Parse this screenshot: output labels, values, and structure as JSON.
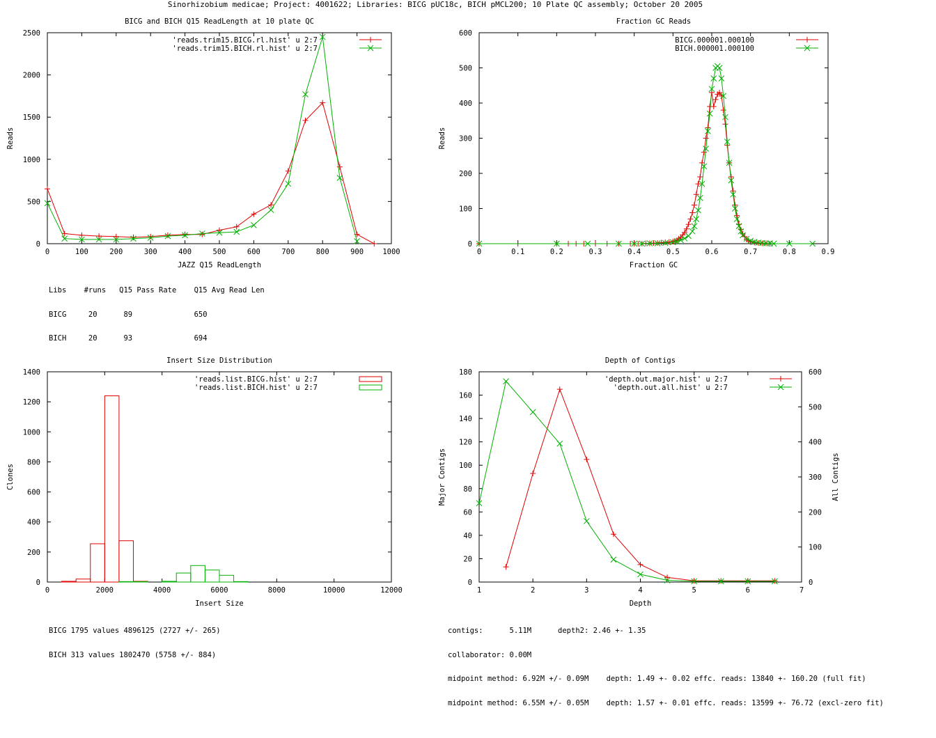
{
  "suptitle": "Sinorhizobium medicae; Project: 4001622; Libraries: BICG pUC18c, BICH pMCL200; 10 Plate QC assembly; October 20 2005",
  "colors": {
    "red": "#e00000",
    "green": "#00b000"
  },
  "chart_data": [
    {
      "id": "readlength",
      "type": "line",
      "title": "BICG and BICH Q15 ReadLength at 10 plate QC",
      "xlabel": "JAZZ Q15 ReadLength",
      "ylabel": "Reads",
      "xlim": [
        0,
        1000
      ],
      "ylim": [
        0,
        2500
      ],
      "xticks": [
        0,
        100,
        200,
        300,
        400,
        500,
        600,
        700,
        800,
        900,
        1000
      ],
      "yticks": [
        0,
        500,
        1000,
        1500,
        2000,
        2500
      ],
      "legend_position": "top-right",
      "series": [
        {
          "name": "'reads.trim15.BICG.rl.hist' u 2:7",
          "color": "#e00000",
          "marker": "plus",
          "x": [
            0,
            50,
            100,
            150,
            200,
            250,
            300,
            350,
            400,
            450,
            500,
            550,
            600,
            650,
            700,
            750,
            800,
            850,
            900,
            950
          ],
          "y": [
            650,
            120,
            100,
            90,
            85,
            75,
            85,
            100,
            110,
            110,
            160,
            200,
            350,
            460,
            860,
            1460,
            1670,
            910,
            110,
            0
          ]
        },
        {
          "name": "'reads.trim15.BICH.rl.hist' u 2:7",
          "color": "#00b000",
          "marker": "x",
          "x": [
            0,
            50,
            100,
            150,
            200,
            250,
            300,
            350,
            400,
            450,
            500,
            550,
            600,
            650,
            700,
            750,
            800,
            850,
            900
          ],
          "y": [
            480,
            60,
            50,
            50,
            50,
            60,
            70,
            90,
            100,
            120,
            130,
            140,
            220,
            400,
            710,
            1770,
            2450,
            780,
            30
          ]
        }
      ],
      "notes": [
        "Libs    #runs   Q15 Pass Rate    Q15 Avg Read Len",
        "BICG     20      89              650",
        "BICH     20      93              694"
      ]
    },
    {
      "id": "gc",
      "type": "line",
      "title": "Fraction GC Reads",
      "xlabel": "Fraction GC",
      "ylabel": "Reads",
      "xlim": [
        0,
        0.9
      ],
      "ylim": [
        0,
        600
      ],
      "xticks": [
        0,
        0.1,
        0.2,
        0.3,
        0.4,
        0.5,
        0.6,
        0.7,
        0.8,
        0.9
      ],
      "yticks": [
        0,
        100,
        200,
        300,
        400,
        500,
        600
      ],
      "legend_position": "top-right",
      "series": [
        {
          "name": "BICG.000001.000100",
          "color": "#e00000",
          "marker": "plus",
          "x": [
            0,
            0.1,
            0.2,
            0.23,
            0.25,
            0.27,
            0.3,
            0.33,
            0.36,
            0.39,
            0.4,
            0.41,
            0.42,
            0.43,
            0.44,
            0.45,
            0.46,
            0.47,
            0.48,
            0.49,
            0.5,
            0.505,
            0.51,
            0.515,
            0.52,
            0.525,
            0.53,
            0.535,
            0.54,
            0.545,
            0.55,
            0.555,
            0.56,
            0.565,
            0.57,
            0.575,
            0.58,
            0.585,
            0.59,
            0.595,
            0.6,
            0.605,
            0.61,
            0.615,
            0.62,
            0.625,
            0.63,
            0.635,
            0.64,
            0.645,
            0.65,
            0.655,
            0.66,
            0.665,
            0.67,
            0.675,
            0.68,
            0.685,
            0.69,
            0.695,
            0.7,
            0.71,
            0.72,
            0.73,
            0.74,
            0.75
          ],
          "y": [
            0,
            0,
            0,
            0,
            0,
            0,
            0,
            0,
            0,
            0,
            0,
            0,
            0,
            1,
            1,
            2,
            2,
            3,
            4,
            5,
            6,
            8,
            10,
            14,
            18,
            25,
            32,
            42,
            55,
            70,
            88,
            110,
            140,
            170,
            190,
            230,
            260,
            300,
            330,
            390,
            430,
            390,
            410,
            425,
            430,
            420,
            380,
            340,
            280,
            230,
            190,
            150,
            110,
            80,
            55,
            40,
            28,
            20,
            12,
            8,
            5,
            3,
            2,
            1,
            1,
            0
          ]
        },
        {
          "name": "BICH.000001.000100",
          "color": "#00b000",
          "marker": "x",
          "x": [
            0,
            0.2,
            0.28,
            0.36,
            0.4,
            0.42,
            0.44,
            0.46,
            0.48,
            0.5,
            0.51,
            0.52,
            0.53,
            0.54,
            0.55,
            0.555,
            0.56,
            0.565,
            0.57,
            0.575,
            0.58,
            0.585,
            0.59,
            0.595,
            0.6,
            0.605,
            0.61,
            0.615,
            0.62,
            0.625,
            0.63,
            0.635,
            0.64,
            0.645,
            0.65,
            0.655,
            0.66,
            0.665,
            0.67,
            0.675,
            0.68,
            0.69,
            0.7,
            0.71,
            0.72,
            0.73,
            0.74,
            0.75,
            0.76,
            0.8,
            0.86
          ],
          "y": [
            0,
            0,
            0,
            0,
            0,
            0,
            1,
            1,
            2,
            4,
            6,
            10,
            15,
            22,
            35,
            50,
            70,
            95,
            130,
            170,
            220,
            270,
            320,
            370,
            440,
            470,
            500,
            505,
            500,
            470,
            420,
            360,
            290,
            230,
            180,
            140,
            100,
            70,
            50,
            35,
            24,
            14,
            8,
            5,
            3,
            2,
            1,
            1,
            0,
            0,
            0
          ]
        }
      ]
    },
    {
      "id": "insert",
      "type": "bar",
      "title": "Insert Size Distribution",
      "xlabel": "Insert Size",
      "ylabel": "Clones",
      "xlim": [
        0,
        12000
      ],
      "ylim": [
        0,
        1400
      ],
      "xticks": [
        0,
        2000,
        4000,
        6000,
        8000,
        10000,
        12000
      ],
      "yticks": [
        0,
        200,
        400,
        600,
        800,
        1000,
        1200,
        1400
      ],
      "legend_position": "top-right",
      "bin_width": 500,
      "series": [
        {
          "name": "'reads.list.BICG.hist' u 2:7",
          "color": "#e00000",
          "x": [
            750,
            1250,
            1750,
            2250,
            2750,
            3250
          ],
          "y": [
            5,
            20,
            255,
            1240,
            275,
            5
          ]
        },
        {
          "name": "'reads.list.BICH.hist' u 2:7",
          "color": "#00b000",
          "x": [
            2750,
            3250,
            4250,
            4750,
            5250,
            5750,
            6250,
            6750
          ],
          "y": [
            3,
            3,
            5,
            60,
            110,
            80,
            45,
            3
          ]
        }
      ],
      "notes": [
        "BICG 1795 values 4896125 (2727 +/- 265)",
        "BICH 313 values 1802470 (5758 +/- 884)"
      ]
    },
    {
      "id": "depth",
      "type": "line",
      "title": "Depth of Contigs",
      "xlabel": "Depth",
      "ylabel": "Major Contigs",
      "y2label": "All Contigs",
      "xlim": [
        1,
        7
      ],
      "ylim": [
        0,
        180
      ],
      "y2lim": [
        0,
        600
      ],
      "xticks": [
        1,
        2,
        3,
        4,
        5,
        6,
        7
      ],
      "yticks": [
        0,
        20,
        40,
        60,
        80,
        100,
        120,
        140,
        160,
        180
      ],
      "y2ticks": [
        0,
        100,
        200,
        300,
        400,
        500,
        600
      ],
      "legend_position": "top-right",
      "series": [
        {
          "name": "'depth.out.major.hist' u 2:7",
          "color": "#e00000",
          "marker": "plus",
          "axis": "y",
          "x": [
            1.5,
            2,
            2.5,
            3,
            3.5,
            4,
            4.5,
            5,
            5.5,
            6,
            6.5
          ],
          "y": [
            13,
            93,
            165,
            105,
            41,
            15,
            4,
            1,
            1,
            1,
            1
          ]
        },
        {
          "name": "'depth.out.all.hist' u 2:7",
          "color": "#00b000",
          "marker": "x",
          "axis": "y2",
          "x": [
            1,
            1.5,
            2,
            2.5,
            3,
            3.5,
            4,
            4.5,
            5,
            5.5,
            6,
            6.5
          ],
          "y": [
            225,
            573,
            485,
            395,
            174,
            64,
            22,
            5,
            2,
            2,
            2,
            2
          ]
        }
      ],
      "notes": [
        "contigs:      5.11M      depth2: 2.46 +- 1.35",
        "collaborator: 0.00M",
        "midpoint method: 6.92M +/- 0.09M    depth: 1.49 +- 0.02 effc. reads: 13840 +- 160.20 (full fit)",
        "midpoint method: 6.55M +/- 0.05M    depth: 1.57 +- 0.01 effc. reads: 13599 +- 76.72 (excl-zero fit)"
      ]
    }
  ]
}
